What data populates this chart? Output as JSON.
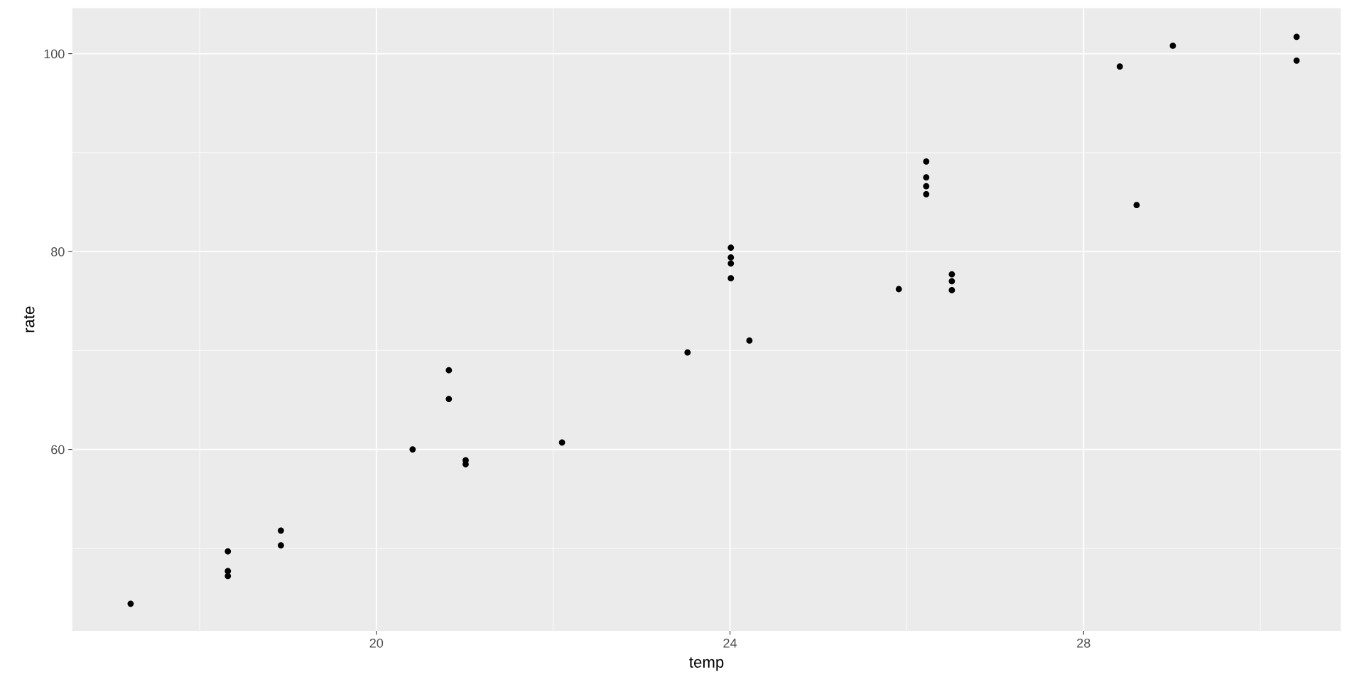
{
  "chart_data": {
    "type": "scatter",
    "xlabel": "temp",
    "ylabel": "rate",
    "x": [
      17.22,
      18.32,
      18.32,
      18.32,
      18.92,
      18.92,
      20.41,
      20.82,
      20.82,
      21.01,
      21.01,
      22.1,
      23.52,
      24.01,
      24.01,
      24.01,
      24.01,
      24.22,
      25.91,
      26.22,
      26.22,
      26.22,
      26.22,
      26.51,
      26.51,
      26.51,
      28.41,
      28.6,
      29.01,
      30.41,
      30.41
    ],
    "series": [
      {
        "color": "#000000",
        "values": [
          44.4,
          49.7,
          47.7,
          47.2,
          51.8,
          50.3,
          60.0,
          68.0,
          65.1,
          58.9,
          58.5,
          60.7,
          69.8,
          80.4,
          79.4,
          78.8,
          77.3,
          71.0,
          76.2,
          89.1,
          87.5,
          86.6,
          85.8,
          77.7,
          77.0,
          76.1,
          98.7,
          84.7,
          100.8,
          101.7,
          99.3
        ]
      }
    ],
    "xlim": [
      16.56,
      30.91
    ],
    "ylim": [
      41.66,
      104.6
    ],
    "xticks": [
      {
        "value": 18,
        "label": null
      },
      20,
      {
        "value": 22,
        "label": null
      },
      24,
      {
        "value": 26,
        "label": null
      },
      28,
      {
        "value": 30,
        "label": null
      }
    ],
    "yticks": [
      {
        "value": 50,
        "label": null
      },
      60,
      {
        "value": 70,
        "label": null
      },
      80,
      {
        "value": 90,
        "label": null
      },
      100
    ],
    "grid": true,
    "marker": "circle",
    "legend": false
  }
}
